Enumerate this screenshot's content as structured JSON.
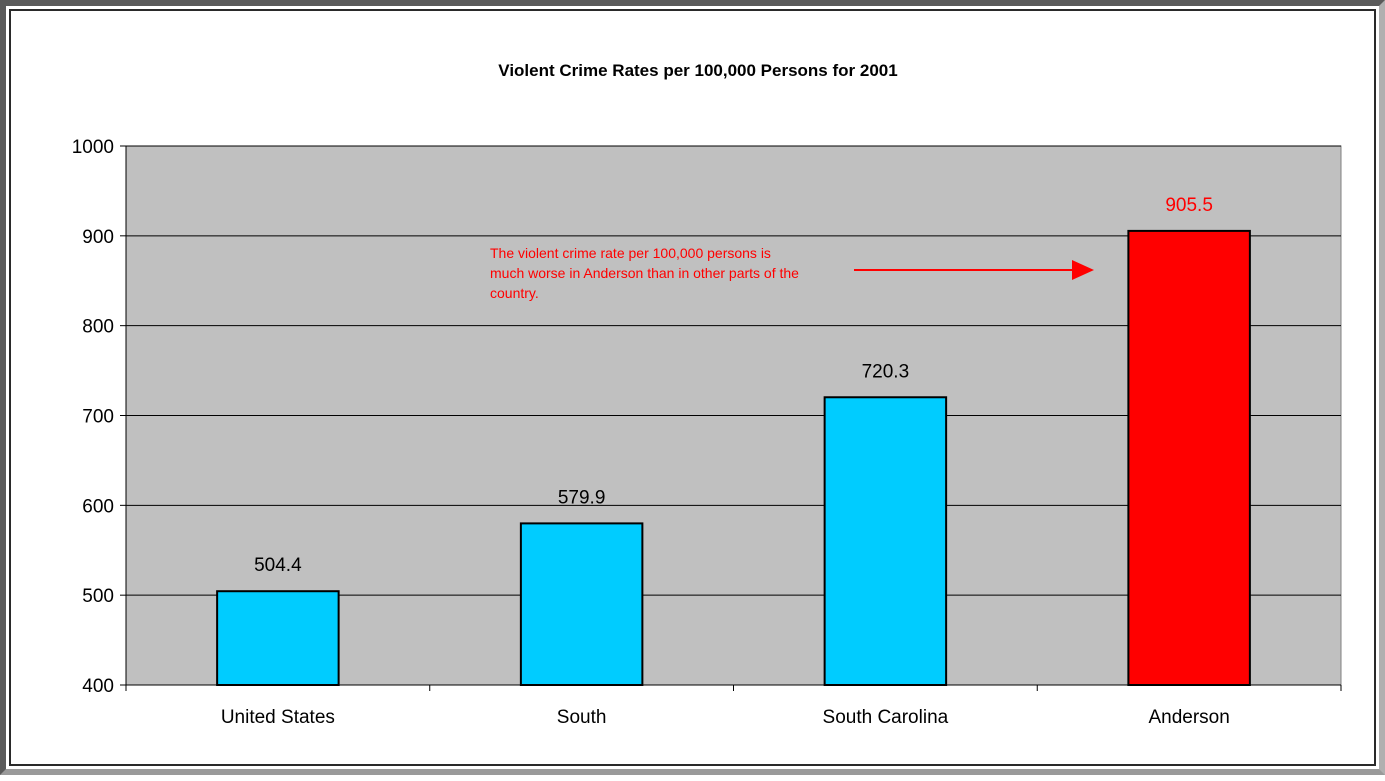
{
  "chart_data": {
    "type": "bar",
    "title": "Violent Crime Rates per 100,000 Persons for 2001",
    "xlabel": "",
    "ylabel": "",
    "categories": [
      "United States",
      "South",
      "South Carolina",
      "Anderson"
    ],
    "values": [
      504.4,
      579.9,
      720.3,
      905.5
    ],
    "value_labels": [
      "504.4",
      "579.9",
      "720.3",
      "905.5"
    ],
    "bar_colors": [
      "#00ccff",
      "#00ccff",
      "#00ccff",
      "#ff0000"
    ],
    "value_label_colors": [
      "#000000",
      "#000000",
      "#000000",
      "#ff0000"
    ],
    "ylim": [
      400,
      1000
    ],
    "yticks": [
      400,
      500,
      600,
      700,
      800,
      900,
      1000
    ],
    "ytick_labels": [
      "400",
      "500",
      "600",
      "700",
      "800",
      "900",
      "1000"
    ],
    "grid": true,
    "legend": "none",
    "plot_background": "#c0c0c0",
    "annotation": {
      "lines": [
        "The violent crime rate per 100,000 persons is",
        "much worse in Anderson than in other parts of the",
        "country."
      ],
      "color": "#ff0000",
      "points_to": "Anderson"
    }
  }
}
